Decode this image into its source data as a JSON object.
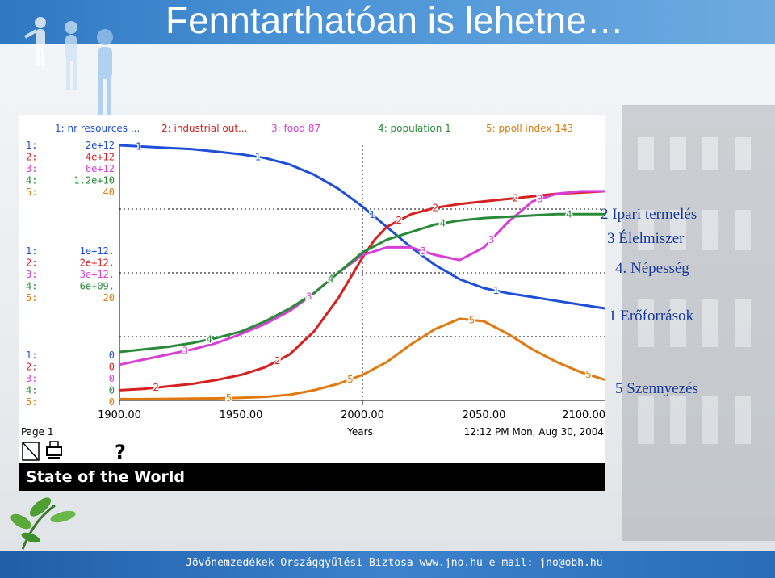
{
  "slide": {
    "title": "Fenntarthatóan is lehetne…",
    "footer": "Jövőnemzedékek Országgyűlési Biztosa www.jno.hu  e-mail: jno@obh.hu",
    "side_labels": {
      "industrial": "2 Ipari termelés",
      "food": "3 Élelmiszer",
      "population": "4. Népesség",
      "resources": "1 Erőforrások",
      "pollution": "5 Szennyezés"
    }
  },
  "chart_data": {
    "type": "line",
    "title": "State of the World",
    "xlabel": "Years",
    "page_label": "Page 1",
    "timestamp": "12:12 PM  Mon, Aug 30, 2004",
    "help_symbol": "?",
    "x_ticks": [
      "1900.00",
      "1950.00",
      "2000.00",
      "2050.00",
      "2100.00"
    ],
    "xlim": [
      1900,
      2100
    ],
    "header": [
      {
        "text": "1: nr resources ...",
        "color": "#1f4fd6"
      },
      {
        "text": "2: industrial out...",
        "color": "#d62020"
      },
      {
        "text": "3: food 87",
        "color": "#d640d6"
      },
      {
        "text": "4: population 1",
        "color": "#2a8a3a"
      },
      {
        "text": "5: ppoll index 143",
        "color": "#e07a10"
      }
    ],
    "scale_top": [
      "2e+12",
      "4e+12",
      "6e+12",
      "1.2e+10",
      "40"
    ],
    "scale_mid": [
      "1e+12.",
      "2e+12.",
      "3e+12.",
      "6e+09.",
      "20"
    ],
    "scale_bottom": [
      "0",
      "0",
      "0",
      "0",
      "0"
    ],
    "scale_prefixes": [
      "1:",
      "2:",
      "3:",
      "4:",
      "5:"
    ],
    "series": [
      {
        "name": "1",
        "color": "#1f4fd6",
        "x": [
          1900,
          1910,
          1920,
          1930,
          1940,
          1950,
          1960,
          1970,
          1980,
          1990,
          2000,
          2010,
          2020,
          2030,
          2040,
          2050,
          2060,
          2070,
          2080,
          2090,
          2100
        ],
        "y": [
          1.0,
          0.995,
          0.99,
          0.985,
          0.975,
          0.965,
          0.95,
          0.925,
          0.885,
          0.83,
          0.76,
          0.68,
          0.6,
          0.53,
          0.475,
          0.44,
          0.42,
          0.405,
          0.39,
          0.375,
          0.36
        ]
      },
      {
        "name": "2",
        "color": "#d62020",
        "x": [
          1900,
          1910,
          1920,
          1930,
          1940,
          1950,
          1960,
          1970,
          1980,
          1990,
          2000,
          2005,
          2010,
          2020,
          2030,
          2040,
          2050,
          2060,
          2070,
          2080,
          2090,
          2100
        ],
        "y": [
          0.04,
          0.045,
          0.055,
          0.065,
          0.08,
          0.1,
          0.13,
          0.18,
          0.27,
          0.4,
          0.56,
          0.63,
          0.68,
          0.73,
          0.755,
          0.77,
          0.78,
          0.79,
          0.8,
          0.81,
          0.815,
          0.82
        ]
      },
      {
        "name": "3",
        "color": "#d640d6",
        "x": [
          1900,
          1910,
          1920,
          1930,
          1940,
          1950,
          1960,
          1970,
          1980,
          1990,
          2000,
          2010,
          2020,
          2030,
          2040,
          2050,
          2060,
          2070,
          2080,
          2090,
          2100
        ],
        "y": [
          0.14,
          0.16,
          0.18,
          0.2,
          0.225,
          0.26,
          0.3,
          0.35,
          0.42,
          0.5,
          0.57,
          0.6,
          0.6,
          0.57,
          0.55,
          0.6,
          0.7,
          0.78,
          0.81,
          0.82,
          0.82
        ]
      },
      {
        "name": "4",
        "color": "#2a8a3a",
        "x": [
          1900,
          1910,
          1920,
          1930,
          1940,
          1950,
          1960,
          1970,
          1980,
          1990,
          2000,
          2010,
          2020,
          2030,
          2040,
          2050,
          2060,
          2070,
          2080,
          2090,
          2100
        ],
        "y": [
          0.19,
          0.2,
          0.21,
          0.225,
          0.245,
          0.27,
          0.31,
          0.36,
          0.42,
          0.5,
          0.58,
          0.63,
          0.66,
          0.69,
          0.705,
          0.715,
          0.72,
          0.725,
          0.73,
          0.73,
          0.73
        ]
      },
      {
        "name": "5",
        "color": "#e07a10",
        "x": [
          1900,
          1910,
          1920,
          1930,
          1940,
          1950,
          1960,
          1970,
          1980,
          1990,
          2000,
          2010,
          2020,
          2030,
          2040,
          2050,
          2060,
          2070,
          2080,
          2090,
          2100
        ],
        "y": [
          0.005,
          0.005,
          0.006,
          0.007,
          0.008,
          0.01,
          0.014,
          0.022,
          0.04,
          0.065,
          0.1,
          0.15,
          0.22,
          0.28,
          0.32,
          0.31,
          0.26,
          0.2,
          0.15,
          0.11,
          0.08
        ]
      }
    ],
    "label_positions_x": {
      "1": [
        1908,
        1957,
        2004,
        2055
      ],
      "2": [
        1915,
        1965,
        2015,
        2030,
        2063
      ],
      "3": [
        1927,
        1978,
        2025,
        2053,
        2073
      ],
      "4": [
        1937,
        1987,
        2033,
        2085
      ],
      "5": [
        1945,
        1995,
        2045,
        2093
      ]
    }
  }
}
